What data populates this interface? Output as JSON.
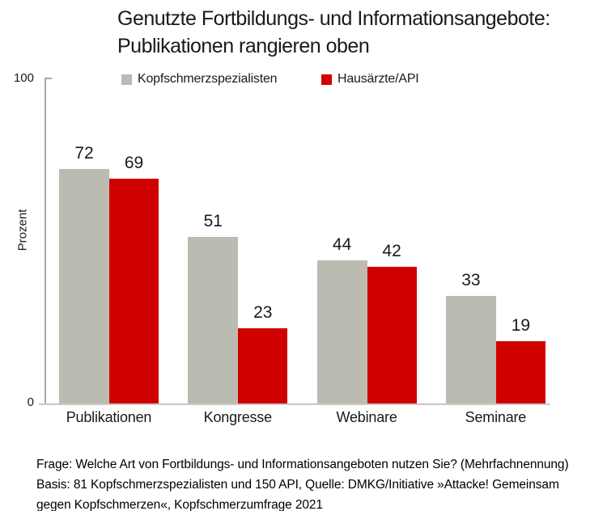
{
  "title": {
    "line1": "Genutzte Fortbildungs- und Informationsangebote:",
    "line2": "Publikationen rangieren oben"
  },
  "legend": [
    {
      "label": "Kopfschmerzspezialisten",
      "color": "#bcbbb2"
    },
    {
      "label": "Hausärzte/API",
      "color": "#d10000"
    }
  ],
  "axis": {
    "y_max_label": "100",
    "y_min_label": "0",
    "y_title": "Prozent"
  },
  "chart_data": {
    "type": "bar",
    "title": "Genutzte Fortbildungs- und Informationsangebote: Publikationen rangieren oben",
    "categories": [
      "Publikationen",
      "Kongresse",
      "Webinare",
      "Seminare"
    ],
    "series": [
      {
        "name": "Kopfschmerzspezialisten",
        "color": "#bcbbb2",
        "values": [
          72,
          51,
          44,
          33
        ]
      },
      {
        "name": "Hausärzte/API",
        "color": "#d10000",
        "values": [
          69,
          23,
          42,
          19
        ]
      }
    ],
    "xlabel": "",
    "ylabel": "Prozent",
    "ylim": [
      0,
      100
    ],
    "grid": false,
    "legend_position": "top",
    "data_labels": true
  },
  "footer": {
    "line1": "Frage: Welche Art von Fortbildungs- und Informationsangeboten nutzen Sie? (Mehrfachnennung)",
    "line2": "Basis: 81 Kopfschmerzspezialisten und 150 API, Quelle: DMKG/Initiative »Attacke! Gemeinsam",
    "line3": "gegen Kopfschmerzen«, Kopfschmerzumfrage 2021"
  }
}
